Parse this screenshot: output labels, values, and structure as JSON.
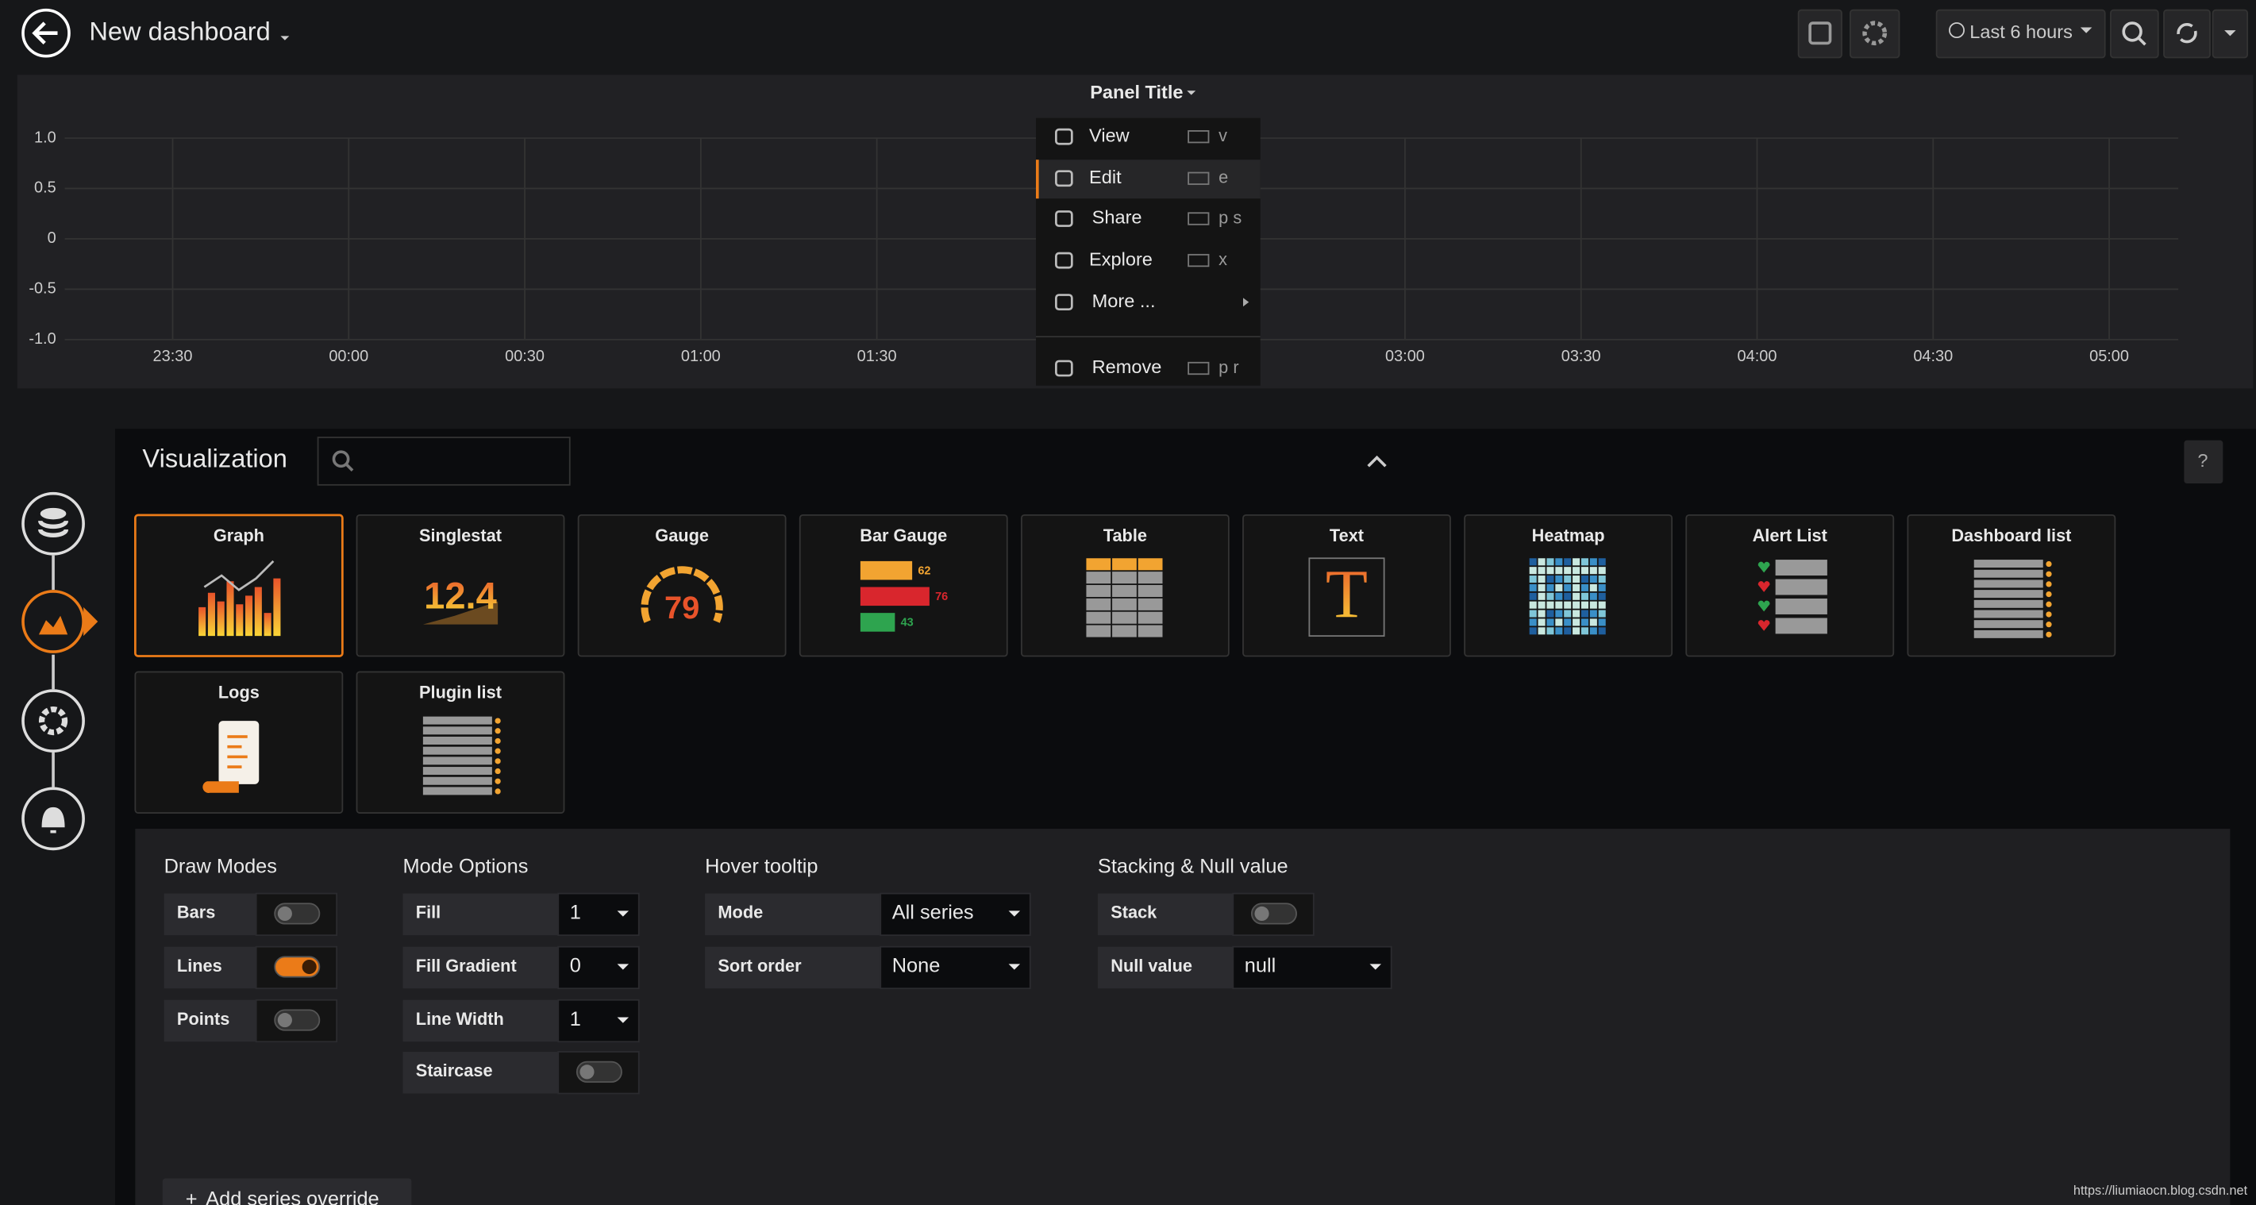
{
  "header": {
    "title": "New dashboard",
    "time_range": "Last 6 hours"
  },
  "panel": {
    "title": "Panel Title",
    "y_labels": [
      "1.0",
      "0.5",
      "0",
      "-0.5",
      "-1.0"
    ],
    "x_labels": [
      "23:30",
      "00:00",
      "00:30",
      "01:00",
      "01:30",
      null,
      null,
      "03:00",
      "03:30",
      "04:00",
      "04:30",
      "05:00"
    ]
  },
  "menu": {
    "items": [
      {
        "label": "View",
        "shortcut": "v"
      },
      {
        "label": "Edit",
        "shortcut": "e",
        "active": true
      },
      {
        "label": "Share",
        "shortcut": "p s"
      },
      {
        "label": "Explore",
        "shortcut": "x"
      },
      {
        "label": "More ..."
      },
      {
        "label": "Remove",
        "shortcut": "p r"
      }
    ]
  },
  "visualization": {
    "title": "Visualization",
    "tiles": [
      {
        "name": "Graph",
        "selected": true
      },
      {
        "name": "Singlestat",
        "icon_text": "12.4"
      },
      {
        "name": "Gauge",
        "icon_text": "79"
      },
      {
        "name": "Bar Gauge",
        "icon_text": [
          "62",
          "76",
          "43"
        ]
      },
      {
        "name": "Table"
      },
      {
        "name": "Text",
        "icon_text": "T"
      },
      {
        "name": "Heatmap"
      },
      {
        "name": "Alert List"
      },
      {
        "name": "Dashboard list"
      },
      {
        "name": "Logs"
      },
      {
        "name": "Plugin list"
      }
    ]
  },
  "options": {
    "sections": [
      {
        "title": "Draw Modes",
        "rows": [
          {
            "label": "Bars",
            "toggle": false
          },
          {
            "label": "Lines",
            "toggle": true
          },
          {
            "label": "Points",
            "toggle": false
          }
        ]
      },
      {
        "title": "Mode Options",
        "rows": [
          {
            "label": "Fill",
            "select": "1"
          },
          {
            "label": "Fill Gradient",
            "select": "0"
          },
          {
            "label": "Line Width",
            "select": "1"
          },
          {
            "label": "Staircase",
            "toggle": false
          }
        ]
      },
      {
        "title": "Hover tooltip",
        "rows": [
          {
            "label": "Mode",
            "select": "All series"
          },
          {
            "label": "Sort order",
            "select": "None"
          }
        ]
      },
      {
        "title": "Stacking & Null value",
        "rows": [
          {
            "label": "Stack",
            "toggle": false
          },
          {
            "label": "Null value",
            "select": "null"
          }
        ]
      }
    ],
    "add_button": "Add series override"
  },
  "watermark": "https://liumiaocn.blog.csdn.net"
}
